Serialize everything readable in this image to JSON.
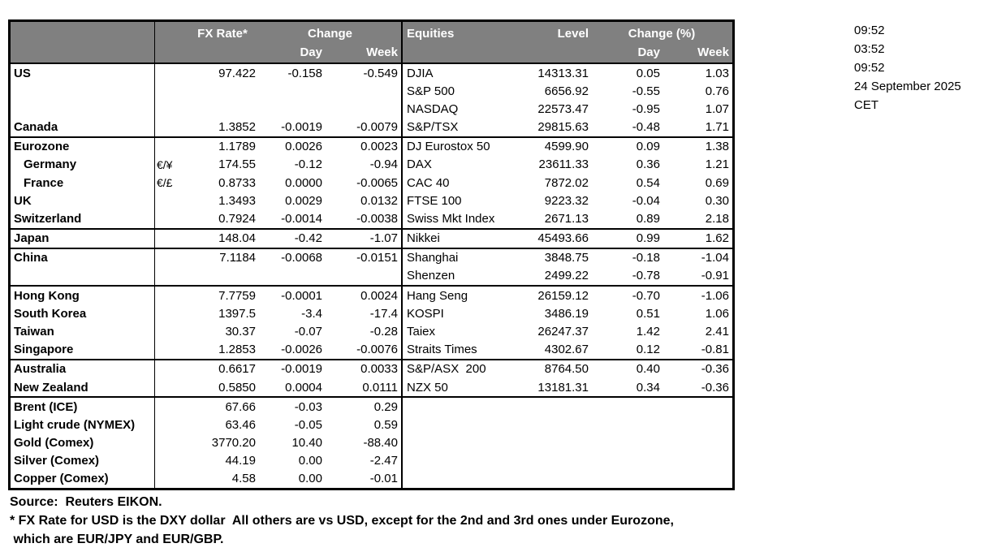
{
  "colors": {
    "header_bg": "#808080",
    "header_text": "#ffffff",
    "border": "#000000",
    "text": "#000000",
    "background": "#ffffff"
  },
  "header": {
    "fx_rate": "FX Rate*",
    "change": "Change",
    "day": "Day",
    "week": "Week",
    "equities": "Equities",
    "level": "Level",
    "change_pct": "Change (%)"
  },
  "rows": [
    {
      "name": "US",
      "indent": false,
      "sym": "",
      "rate": "97.422",
      "day": "-0.158",
      "week": "-0.549",
      "eq_name": "DJIA",
      "eq_level": "14313.31",
      "eq_day": "0.05",
      "eq_week": "1.03",
      "sep": false
    },
    {
      "name": "",
      "indent": false,
      "sym": "",
      "rate": "",
      "day": "",
      "week": "",
      "eq_name": "S&P 500",
      "eq_level": "6656.92",
      "eq_day": "-0.55",
      "eq_week": "0.76",
      "sep": false
    },
    {
      "name": "",
      "indent": false,
      "sym": "",
      "rate": "",
      "day": "",
      "week": "",
      "eq_name": "NASDAQ",
      "eq_level": "22573.47",
      "eq_day": "-0.95",
      "eq_week": "1.07",
      "sep": false
    },
    {
      "name": "Canada",
      "indent": false,
      "sym": "",
      "rate": "1.3852",
      "day": "-0.0019",
      "week": "-0.0079",
      "eq_name": "S&P/TSX",
      "eq_level": "29815.63",
      "eq_day": "-0.48",
      "eq_week": "1.71",
      "sep": true
    },
    {
      "name": "Eurozone",
      "indent": false,
      "sym": "",
      "rate": "1.1789",
      "day": "0.0026",
      "week": "0.0023",
      "eq_name": "DJ Eurostox 50",
      "eq_level": "4599.90",
      "eq_day": "0.09",
      "eq_week": "1.38",
      "sep": false
    },
    {
      "name": "Germany",
      "indent": true,
      "sym": "€/¥",
      "rate": "174.55",
      "day": "-0.12",
      "week": "-0.94",
      "eq_name": "DAX",
      "eq_level": "23611.33",
      "eq_day": "0.36",
      "eq_week": "1.21",
      "sep": false
    },
    {
      "name": "France",
      "indent": true,
      "sym": "€/£",
      "rate": "0.8733",
      "day": "0.0000",
      "week": "-0.0065",
      "eq_name": "CAC 40",
      "eq_level": "7872.02",
      "eq_day": "0.54",
      "eq_week": "0.69",
      "sep": false
    },
    {
      "name": "UK",
      "indent": false,
      "sym": "",
      "rate": "1.3493",
      "day": "0.0029",
      "week": "0.0132",
      "eq_name": "FTSE 100",
      "eq_level": "9223.32",
      "eq_day": "-0.04",
      "eq_week": "0.30",
      "sep": false
    },
    {
      "name": "Switzerland",
      "indent": false,
      "sym": "",
      "rate": "0.7924",
      "day": "-0.0014",
      "week": "-0.0038",
      "eq_name": "Swiss Mkt Index",
      "eq_level": "2671.13",
      "eq_day": "0.89",
      "eq_week": "2.18",
      "sep": true
    },
    {
      "name": "Japan",
      "indent": false,
      "sym": "",
      "rate": "148.04",
      "day": "-0.42",
      "week": "-1.07",
      "eq_name": "Nikkei",
      "eq_level": "45493.66",
      "eq_day": "0.99",
      "eq_week": "1.62",
      "sep": true
    },
    {
      "name": "China",
      "indent": false,
      "sym": "",
      "rate": "7.1184",
      "day": "-0.0068",
      "week": "-0.0151",
      "eq_name": "Shanghai",
      "eq_level": "3848.75",
      "eq_day": "-0.18",
      "eq_week": "-1.04",
      "sep": false
    },
    {
      "name": "",
      "indent": false,
      "sym": "",
      "rate": "",
      "day": "",
      "week": "",
      "eq_name": "Shenzen",
      "eq_level": "2499.22",
      "eq_day": "-0.78",
      "eq_week": "-0.91",
      "sep": true
    },
    {
      "name": "Hong Kong",
      "indent": false,
      "sym": "",
      "rate": "7.7759",
      "day": "-0.0001",
      "week": "0.0024",
      "eq_name": "Hang Seng",
      "eq_level": "26159.12",
      "eq_day": "-0.70",
      "eq_week": "-1.06",
      "sep": false
    },
    {
      "name": "South Korea",
      "indent": false,
      "sym": "",
      "rate": "1397.5",
      "day": "-3.4",
      "week": "-17.4",
      "eq_name": "KOSPI",
      "eq_level": "3486.19",
      "eq_day": "0.51",
      "eq_week": "1.06",
      "sep": false
    },
    {
      "name": "Taiwan",
      "indent": false,
      "sym": "",
      "rate": "30.37",
      "day": "-0.07",
      "week": "-0.28",
      "eq_name": "Taiex",
      "eq_level": "26247.37",
      "eq_day": "1.42",
      "eq_week": "2.41",
      "sep": false
    },
    {
      "name": "Singapore",
      "indent": false,
      "sym": "",
      "rate": "1.2853",
      "day": "-0.0026",
      "week": "-0.0076",
      "eq_name": "Straits Times",
      "eq_level": "4302.67",
      "eq_day": "0.12",
      "eq_week": "-0.81",
      "sep": true
    },
    {
      "name": "Australia",
      "indent": false,
      "sym": "",
      "rate": "0.6617",
      "day": "-0.0019",
      "week": "0.0033",
      "eq_name": "S&P/ASX  200",
      "eq_level": "8764.50",
      "eq_day": "0.40",
      "eq_week": "-0.36",
      "sep": false
    },
    {
      "name": "New Zealand",
      "indent": false,
      "sym": "",
      "rate": "0.5850",
      "day": "0.0004",
      "week": "0.0111",
      "eq_name": "NZX 50",
      "eq_level": "13181.31",
      "eq_day": "0.34",
      "eq_week": "-0.36",
      "sep": true
    },
    {
      "name": "Brent (ICE)",
      "indent": false,
      "sym": "",
      "rate": "67.66",
      "day": "-0.03",
      "week": "0.29",
      "eq_name": "",
      "eq_level": "",
      "eq_day": "",
      "eq_week": "",
      "sep": false
    },
    {
      "name": "Light crude (NYMEX)",
      "indent": false,
      "sym": "",
      "rate": "63.46",
      "day": "-0.05",
      "week": "0.59",
      "eq_name": "",
      "eq_level": "",
      "eq_day": "",
      "eq_week": "",
      "sep": false
    },
    {
      "name": "Gold (Comex)",
      "indent": false,
      "sym": "",
      "rate": "3770.20",
      "day": "10.40",
      "week": "-88.40",
      "eq_name": "",
      "eq_level": "",
      "eq_day": "",
      "eq_week": "",
      "sep": false
    },
    {
      "name": "Silver (Comex)",
      "indent": false,
      "sym": "",
      "rate": "44.19",
      "day": "0.00",
      "week": "-2.47",
      "eq_name": "",
      "eq_level": "",
      "eq_day": "",
      "eq_week": "",
      "sep": false
    },
    {
      "name": "Copper (Comex)",
      "indent": false,
      "sym": "",
      "rate": "4.58",
      "day": "0.00",
      "week": "-0.01",
      "eq_name": "",
      "eq_level": "",
      "eq_day": "",
      "eq_week": "",
      "sep": false
    }
  ],
  "timestamps": [
    "09:52",
    "03:52",
    "09:52",
    "24 September 2025",
    "CET"
  ],
  "footer_lines": [
    "Source:  Reuters EIKON.",
    "* FX Rate for USD is the DXY dollar  All others are vs USD, except for the 2nd and 3rd ones under Eurozone,",
    " which are EUR/JPY and EUR/GBP."
  ]
}
